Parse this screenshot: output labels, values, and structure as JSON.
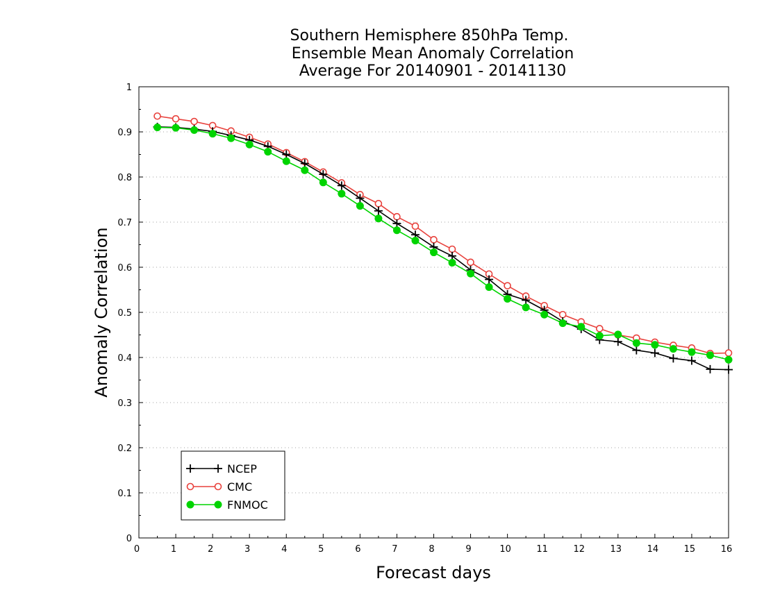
{
  "chart_data": {
    "type": "line",
    "title_lines": [
      "Southern Hemisphere 850hPa Temp.",
      "Ensemble Mean Anomaly Correlation",
      "Average For 20140901 - 20141130"
    ],
    "xlabel": "Forecast days",
    "ylabel": "Anomaly Correlation",
    "xlim": [
      0,
      16
    ],
    "ylim": [
      0,
      1
    ],
    "x_ticks": [
      0,
      1,
      2,
      3,
      4,
      5,
      6,
      7,
      8,
      9,
      10,
      11,
      12,
      13,
      14,
      15,
      16
    ],
    "y_ticks": [
      0,
      0.1,
      0.2,
      0.3,
      0.4,
      0.5,
      0.6,
      0.7,
      0.8,
      0.9,
      1
    ],
    "y_tick_labels": [
      "0",
      "0.1",
      "0.2",
      "0.3",
      "0.4",
      "0.5",
      "0.6",
      "0.7",
      "0.8",
      "0.9",
      "1"
    ],
    "grid": "horizontal-dotted",
    "legend_position": "bottom-left",
    "x": [
      0.5,
      1,
      1.5,
      2,
      2.5,
      3,
      3.5,
      4,
      4.5,
      5,
      5.5,
      6,
      6.5,
      7,
      7.5,
      8,
      8.5,
      9,
      9.5,
      10,
      10.5,
      11,
      11.5,
      12,
      12.5,
      13,
      13.5,
      14,
      14.5,
      15,
      15.5,
      16
    ],
    "series": [
      {
        "name": "NCEP",
        "color": "#000000",
        "marker": "plus",
        "values": [
          0.911,
          0.91,
          0.906,
          0.901,
          0.892,
          0.882,
          0.868,
          0.85,
          0.83,
          0.806,
          0.781,
          0.753,
          0.725,
          0.697,
          0.672,
          0.645,
          0.625,
          0.594,
          0.573,
          0.54,
          0.527,
          0.505,
          0.48,
          0.463,
          0.439,
          0.435,
          0.416,
          0.41,
          0.398,
          0.393,
          0.374,
          0.373
        ]
      },
      {
        "name": "CMC",
        "color": "#e8413c",
        "marker": "open-circle",
        "values": [
          0.935,
          0.929,
          0.923,
          0.914,
          0.902,
          0.888,
          0.873,
          0.854,
          0.834,
          0.811,
          0.787,
          0.761,
          0.741,
          0.712,
          0.691,
          0.661,
          0.64,
          0.611,
          0.585,
          0.559,
          0.536,
          0.515,
          0.495,
          0.479,
          0.464,
          0.45,
          0.443,
          0.434,
          0.427,
          0.421,
          0.409,
          0.41
        ]
      },
      {
        "name": "FNMOC",
        "color": "#00d400",
        "marker": "filled-circle",
        "values": [
          0.91,
          0.909,
          0.904,
          0.896,
          0.886,
          0.872,
          0.856,
          0.835,
          0.815,
          0.788,
          0.763,
          0.736,
          0.708,
          0.682,
          0.659,
          0.633,
          0.61,
          0.586,
          0.556,
          0.53,
          0.511,
          0.495,
          0.476,
          0.468,
          0.448,
          0.451,
          0.432,
          0.428,
          0.419,
          0.412,
          0.405,
          0.395
        ]
      }
    ]
  }
}
